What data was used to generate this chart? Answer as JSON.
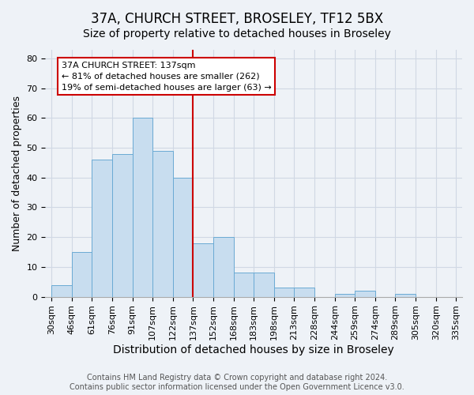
{
  "title": "37A, CHURCH STREET, BROSELEY, TF12 5BX",
  "subtitle": "Size of property relative to detached houses in Broseley",
  "xlabel": "Distribution of detached houses by size in Broseley",
  "ylabel": "Number of detached properties",
  "bar_values": [
    4,
    15,
    46,
    48,
    60,
    49,
    40,
    18,
    20,
    8,
    8,
    3,
    3,
    0,
    1,
    2,
    0,
    1,
    0,
    0
  ],
  "bar_labels": [
    "30sqm",
    "46sqm",
    "61sqm",
    "76sqm",
    "91sqm",
    "107sqm",
    "122sqm",
    "137sqm",
    "152sqm",
    "168sqm",
    "183sqm",
    "198sqm",
    "213sqm",
    "228sqm",
    "244sqm",
    "259sqm",
    "274sqm",
    "289sqm",
    "305sqm",
    "320sqm",
    "335sqm"
  ],
  "bar_color": "#c8ddef",
  "bar_edge_color": "#6aaad4",
  "vline_color": "#cc0000",
  "vline_x": 7,
  "ylim": [
    0,
    83
  ],
  "yticks": [
    0,
    10,
    20,
    30,
    40,
    50,
    60,
    70,
    80
  ],
  "annotation_title": "37A CHURCH STREET: 137sqm",
  "annotation_line1": "← 81% of detached houses are smaller (262)",
  "annotation_line2": "19% of semi-detached houses are larger (63) →",
  "annotation_box_facecolor": "#ffffff",
  "annotation_box_edgecolor": "#cc0000",
  "grid_color": "#d0d8e4",
  "background_color": "#eef2f7",
  "footer_line1": "Contains HM Land Registry data © Crown copyright and database right 2024.",
  "footer_line2": "Contains public sector information licensed under the Open Government Licence v3.0.",
  "title_fontsize": 12,
  "subtitle_fontsize": 10,
  "xlabel_fontsize": 10,
  "ylabel_fontsize": 9,
  "tick_fontsize": 8,
  "annotation_fontsize": 8,
  "footer_fontsize": 7
}
